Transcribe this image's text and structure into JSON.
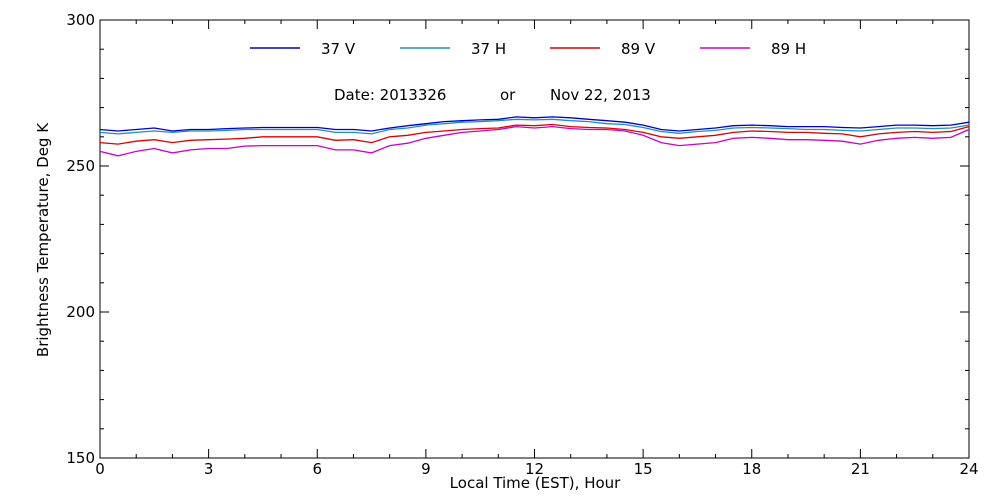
{
  "chart_data": {
    "type": "line",
    "ylabel": "Brightness Temperature, Deg K",
    "xlabel": "Local Time (EST), Hour",
    "xlim": [
      0,
      24
    ],
    "ylim": [
      150,
      300
    ],
    "xticks": [
      "0",
      "3",
      "6",
      "9",
      "12",
      "15",
      "18",
      "21",
      "24"
    ],
    "yticks": [
      "150",
      "200",
      "250",
      "300"
    ],
    "annotation": {
      "date_label": "Date: 2013326",
      "or_label": "or",
      "date_text": "Nov 22, 2013"
    },
    "legend_position": "top",
    "x": [
      0,
      0.5,
      1,
      1.5,
      2,
      2.5,
      3,
      3.5,
      4,
      4.5,
      5,
      5.5,
      6,
      6.5,
      7,
      7.5,
      8,
      8.5,
      9,
      9.5,
      10,
      10.5,
      11,
      11.5,
      12,
      12.5,
      13,
      13.5,
      14,
      14.5,
      15,
      15.5,
      16,
      16.5,
      17,
      17.5,
      18,
      18.5,
      19,
      19.5,
      20,
      20.5,
      21,
      21.5,
      22,
      22.5,
      23,
      23.5,
      24
    ],
    "series": [
      {
        "name": "37 V",
        "color": "#0000cc",
        "values": [
          262.5,
          262,
          262.5,
          263,
          262,
          262.5,
          262.5,
          262.8,
          263,
          263.2,
          263.2,
          263.2,
          263.2,
          262.5,
          262.5,
          262,
          263,
          263.8,
          264.5,
          265.2,
          265.5,
          265.8,
          266,
          266.8,
          266.5,
          266.8,
          266.5,
          266,
          265.5,
          265,
          264,
          262.5,
          262,
          262.5,
          263,
          263.8,
          264,
          263.8,
          263.5,
          263.5,
          263.5,
          263.2,
          263,
          263.5,
          264,
          264,
          263.8,
          264,
          265
        ]
      },
      {
        "name": "37 H",
        "color": "#1f8fbf",
        "values": [
          261.5,
          261,
          261.5,
          262,
          261.5,
          262,
          262,
          262.2,
          262.5,
          262.5,
          262.5,
          262.5,
          262.5,
          261.5,
          261.5,
          261,
          262.5,
          263,
          264,
          264.5,
          265,
          265.2,
          265.5,
          266,
          265.8,
          266,
          265.5,
          265.2,
          264.5,
          264.2,
          263.2,
          261.8,
          261.2,
          261.8,
          262.2,
          263,
          263.2,
          263,
          262.8,
          262.5,
          262.5,
          262.2,
          262,
          262.5,
          263,
          263,
          262.8,
          263,
          264
        ]
      },
      {
        "name": "89 V",
        "color": "#e00000",
        "values": [
          258,
          257.5,
          258.5,
          259,
          258,
          258.8,
          259,
          259.2,
          259.5,
          260,
          260,
          260,
          260,
          258.8,
          259,
          258,
          260,
          260.5,
          261.5,
          262,
          262.5,
          262.8,
          263,
          264,
          263.8,
          264.2,
          263.5,
          263.2,
          263,
          262.5,
          261.5,
          260,
          259.5,
          260,
          260.5,
          261.5,
          262,
          261.8,
          261.5,
          261.5,
          261.2,
          261,
          260,
          261,
          261.5,
          261.8,
          261.5,
          261.8,
          263.5
        ]
      },
      {
        "name": "89 H",
        "color": "#cc00cc",
        "values": [
          255,
          253.5,
          255,
          256,
          254.5,
          255.5,
          256,
          256,
          256.8,
          257,
          257,
          257,
          257,
          255.5,
          255.5,
          254.5,
          257,
          257.8,
          259.5,
          260.5,
          261.5,
          262,
          262.5,
          263.5,
          263,
          263.5,
          262.8,
          262.5,
          262.5,
          262,
          260.5,
          258,
          257,
          257.5,
          258,
          259.5,
          259.8,
          259.5,
          259,
          259,
          258.8,
          258.5,
          257.5,
          258.8,
          259.5,
          259.8,
          259.5,
          259.8,
          262.5
        ]
      }
    ]
  }
}
